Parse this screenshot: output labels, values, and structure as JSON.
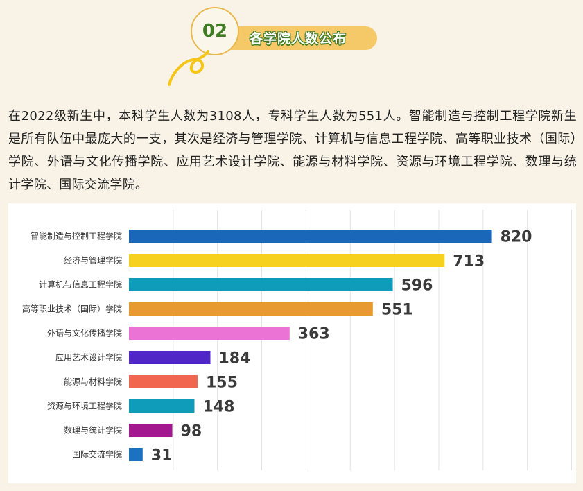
{
  "header": {
    "number": "02",
    "title": "各学院人数公布"
  },
  "intro": {
    "text": "在2022级新生中，本科学生人数为3108人，专科学生人数为551人。智能制造与控制工程学院新生是所有队伍中最庞大的一支，其次是经济与管理学院、计算机与信息工程学院、高等职业技术（国际）学院、外语与文化传播学院、应用艺术设计学院、能源与材料学院、资源与环境工程学院、数理与统计学院、国际交流学院。"
  },
  "colors": {
    "background": "#f8f3e6",
    "badge_green": "#3f7d24",
    "badge_yellow": "#f5c868"
  },
  "chart_data": {
    "type": "bar",
    "orientation": "horizontal",
    "title": "",
    "xlabel": "",
    "ylabel": "",
    "xlim": [
      0,
      1000
    ],
    "grid": true,
    "legend": "none",
    "categories": [
      "智能制造与控制工程学院",
      "经济与管理学院",
      "计算机与信息工程学院",
      "高等职业技术（国际）学院",
      "外语与文化传播学院",
      "应用艺术设计学院",
      "能源与材料学院",
      "资源与环境工程学院",
      "数理与统计学院",
      "国际交流学院"
    ],
    "values": [
      820,
      713,
      596,
      551,
      363,
      184,
      155,
      148,
      98,
      31
    ],
    "colors": [
      "#1a66b8",
      "#f6d21f",
      "#0f9bba",
      "#e69a2f",
      "#ec73d6",
      "#5126c6",
      "#f0664e",
      "#0f9bba",
      "#a4188f",
      "#1a72c0"
    ]
  }
}
